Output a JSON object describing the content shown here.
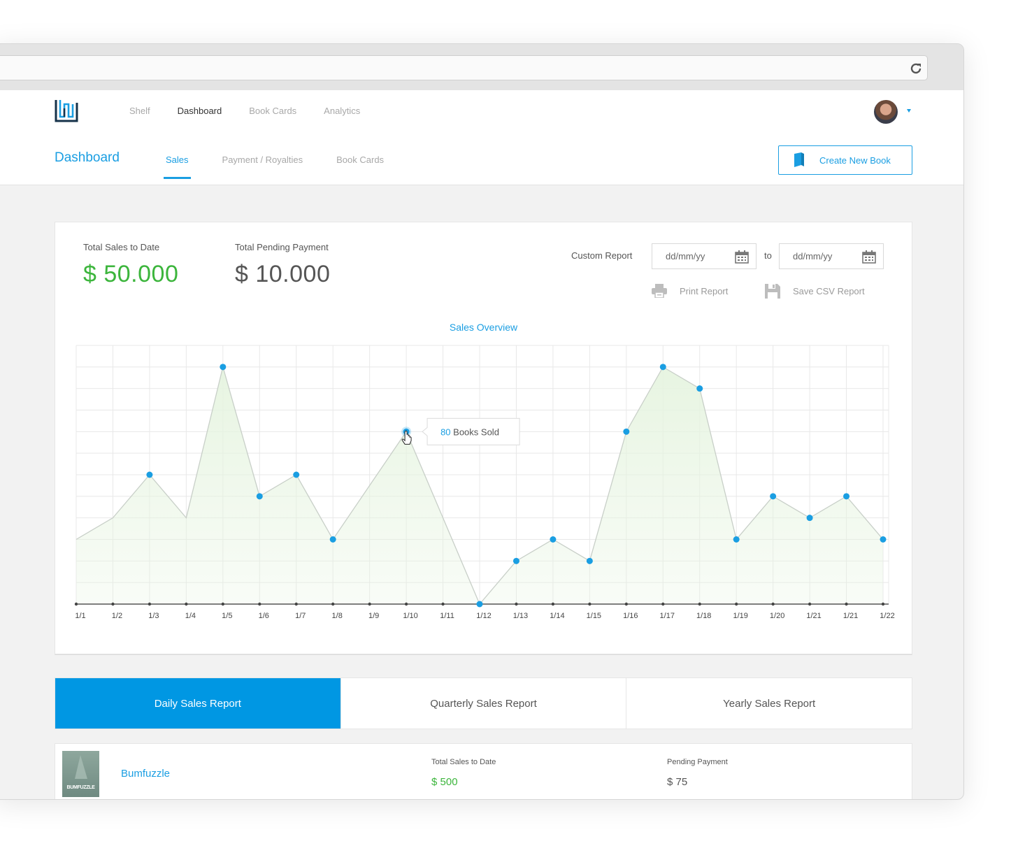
{
  "nav": {
    "items": [
      "Shelf",
      "Dashboard",
      "Book Cards",
      "Analytics"
    ],
    "active_index": 1
  },
  "subnav": {
    "title": "Dashboard",
    "tabs": [
      "Sales",
      "Payment / Royalties",
      "Book Cards"
    ],
    "active_index": 0,
    "create_button": "Create New Book"
  },
  "stats": {
    "total_sales_label": "Total Sales to Date",
    "total_sales_value": "$ 50.000",
    "pending_label": "Total Pending Payment",
    "pending_value": "$ 10.000"
  },
  "report": {
    "custom_label": "Custom Report",
    "from_placeholder": "dd/mm/yy",
    "to_label": "to",
    "to_placeholder": "dd/mm/yy",
    "print_label": "Print Report",
    "csv_label": "Save CSV Report"
  },
  "chart_data": {
    "type": "area",
    "title": "Sales Overview",
    "x": [
      "1/1",
      "1/2",
      "1/3",
      "1/4",
      "1/5",
      "1/6",
      "1/7",
      "1/8",
      "1/9",
      "1/10",
      "1/11",
      "1/12",
      "1/13",
      "1/14",
      "1/15",
      "1/16",
      "1/17",
      "1/18",
      "1/19",
      "1/20",
      "1/21",
      "1/21",
      "1/22"
    ],
    "values": [
      30,
      40,
      60,
      40,
      110,
      50,
      60,
      30,
      55,
      80,
      40,
      0,
      20,
      30,
      20,
      80,
      110,
      100,
      30,
      50,
      40,
      50,
      30
    ],
    "markers": [
      false,
      false,
      true,
      false,
      true,
      true,
      true,
      true,
      false,
      true,
      false,
      true,
      true,
      true,
      true,
      true,
      true,
      true,
      true,
      true,
      true,
      true,
      true
    ],
    "ylim": [
      0,
      120
    ],
    "grid": true,
    "tooltip": {
      "index": 9,
      "value": "80",
      "text": "Books Sold"
    },
    "colors": {
      "line": "#c8cfc8",
      "point": "#1a9ee2",
      "fill": "#e6f4e0"
    }
  },
  "report_tabs": {
    "items": [
      "Daily Sales Report",
      "Quarterly Sales Report",
      "Yearly Sales Report"
    ],
    "active_index": 0
  },
  "books": [
    {
      "title": "Bumfuzzle",
      "cover_text": "BUMFUZZLE",
      "total_sales_label": "Total Sales to Date",
      "total_sales_value": "$ 500",
      "pending_label": "Pending Payment",
      "pending_value": "$ 75"
    }
  ],
  "colors": {
    "accent": "#1a9ee2",
    "positive": "#3cb53c",
    "tab_active": "#0097e3"
  }
}
